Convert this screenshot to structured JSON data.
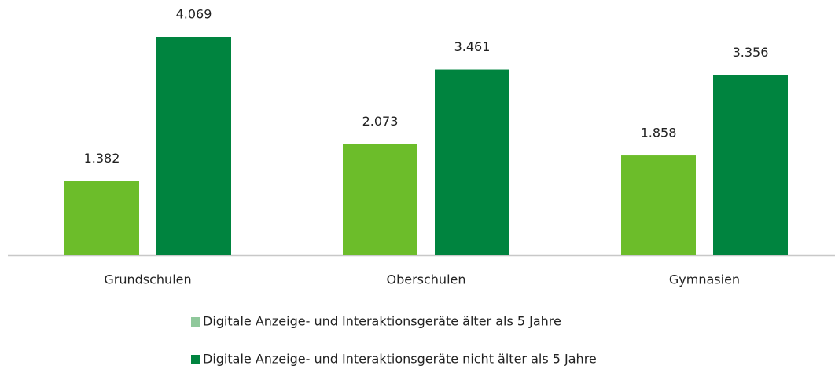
{
  "chart_data": {
    "type": "bar",
    "categories": [
      "Grundschulen",
      "Oberschulen",
      "Gymnasien"
    ],
    "series": [
      {
        "name": "Digitale Anzeige- und Interaktionsgeräte älter als 5 Jahre",
        "color": "#6cbd2a",
        "legend_color": "#8fc89b",
        "values": [
          1382,
          2073,
          1858
        ],
        "value_labels": [
          "1.382",
          "2.073",
          "1.858"
        ]
      },
      {
        "name": "Digitale Anzeige- und Interaktionsgeräte nicht älter als 5 Jahre",
        "color": "#00843f",
        "legend_color": "#00843f",
        "values": [
          4069,
          3461,
          3356
        ],
        "value_labels": [
          "4.069",
          "3.461",
          "3.356"
        ]
      }
    ]
  }
}
